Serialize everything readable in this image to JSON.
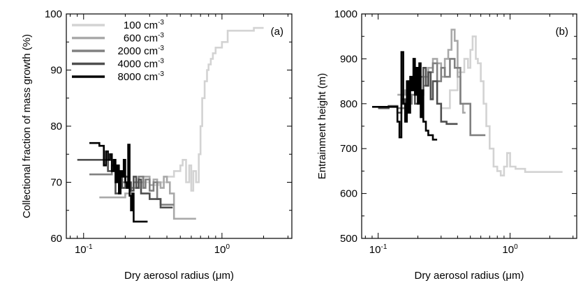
{
  "chart_data": [
    {
      "type": "line",
      "panel_label": "(a)",
      "xlabel": "Dry aerosol radius (μm)",
      "ylabel": "Collectional fraction of mass growth (%)",
      "xscale": "log",
      "xlim": [
        0.075,
        3.2
      ],
      "ylim": [
        60,
        100
      ],
      "yticks": [
        60,
        70,
        80,
        90,
        100
      ],
      "xtick_labels": [
        {
          "base": "10",
          "exp": "-1"
        },
        {
          "base": "10",
          "exp": "0"
        }
      ],
      "grid": false,
      "legend_placement": "top-left",
      "series": [
        {
          "name": "100 cm",
          "name_sup": "-3",
          "color": "#d3d3d3",
          "x": [
            0.24,
            0.26,
            0.3,
            0.35,
            0.4,
            0.45,
            0.5,
            0.52,
            0.55,
            0.58,
            0.6,
            0.62,
            0.65,
            0.68,
            0.7,
            0.72,
            0.75,
            0.78,
            0.8,
            0.83,
            0.86,
            0.9,
            0.95,
            1.0,
            1.05,
            1.1,
            1.2,
            1.4,
            1.7,
            2.0
          ],
          "y": [
            69,
            70,
            69.5,
            70,
            71,
            72,
            73,
            74,
            70,
            73,
            68.5,
            72,
            70,
            75,
            80,
            85,
            88,
            90,
            91,
            92,
            93,
            94,
            94,
            95,
            95,
            97,
            97,
            97,
            97.5,
            97.5
          ]
        },
        {
          "name": "600 cm",
          "name_sup": "-3",
          "color": "#a9a9a9",
          "x": [
            0.13,
            0.15,
            0.18,
            0.2,
            0.22,
            0.25,
            0.27,
            0.3,
            0.32,
            0.34,
            0.36,
            0.38,
            0.4,
            0.42,
            0.45,
            0.55,
            0.65
          ],
          "y": [
            67.3,
            67.3,
            67.3,
            68,
            69,
            70,
            71,
            69.5,
            70.5,
            70,
            69,
            71,
            70,
            68,
            63.5,
            63.5,
            63.5
          ]
        },
        {
          "name": "2000 cm",
          "name_sup": "-3",
          "color": "#808080",
          "x": [
            0.11,
            0.14,
            0.16,
            0.18,
            0.2,
            0.21,
            0.23,
            0.25,
            0.27,
            0.28,
            0.3,
            0.32,
            0.34,
            0.36,
            0.4,
            0.45
          ],
          "y": [
            71.4,
            71.4,
            72,
            70,
            71,
            69,
            70,
            71,
            69,
            70.5,
            68.5,
            70,
            67,
            66,
            66,
            66
          ]
        },
        {
          "name": "4000 cm",
          "name_sup": "-3",
          "color": "#4f4f4f",
          "x": [
            0.09,
            0.13,
            0.15,
            0.16,
            0.17,
            0.18,
            0.19,
            0.2,
            0.21,
            0.22,
            0.23,
            0.24,
            0.25,
            0.26,
            0.28,
            0.3,
            0.33,
            0.36,
            0.4,
            0.44
          ],
          "y": [
            74,
            74,
            72,
            73,
            68,
            71,
            69,
            71,
            70,
            68.5,
            71,
            69,
            70.5,
            68,
            68,
            67,
            67,
            65.5,
            65.5,
            65.5
          ]
        },
        {
          "name": "8000 cm",
          "name_sup": "-3",
          "color": "#000000",
          "x": [
            0.11,
            0.12,
            0.13,
            0.14,
            0.145,
            0.15,
            0.155,
            0.16,
            0.165,
            0.17,
            0.175,
            0.18,
            0.185,
            0.19,
            0.195,
            0.2,
            0.205,
            0.21,
            0.215,
            0.22,
            0.225,
            0.23,
            0.24,
            0.26,
            0.29
          ],
          "y": [
            77,
            77,
            76.5,
            73,
            75.5,
            74,
            75,
            72,
            74,
            70,
            73,
            68,
            72,
            71,
            74,
            70,
            69,
            76.7,
            67.6,
            65,
            68,
            63,
            63,
            63,
            63
          ]
        }
      ]
    },
    {
      "type": "line",
      "panel_label": "(b)",
      "xlabel": "Dry aerosol radius (μm)",
      "ylabel": "Entrainment height (m)",
      "xscale": "log",
      "xlim": [
        0.075,
        3.2
      ],
      "ylim": [
        500,
        1000
      ],
      "yticks": [
        500,
        600,
        700,
        800,
        900,
        1000
      ],
      "xtick_labels": [
        {
          "base": "10",
          "exp": "-1"
        },
        {
          "base": "10",
          "exp": "0"
        }
      ],
      "grid": false,
      "series": [
        {
          "name": "100 cm",
          "name_sup": "-3",
          "color": "#d3d3d3",
          "x": [
            0.3,
            0.35,
            0.4,
            0.45,
            0.48,
            0.5,
            0.52,
            0.55,
            0.57,
            0.6,
            0.63,
            0.66,
            0.7,
            0.75,
            0.8,
            0.85,
            0.9,
            0.95,
            1.0,
            1.1,
            1.3,
            1.8,
            2.5
          ],
          "y": [
            790,
            830,
            870,
            900,
            880,
            920,
            950,
            900,
            890,
            850,
            800,
            750,
            700,
            660,
            650,
            640,
            660,
            690,
            660,
            655,
            648,
            648,
            648
          ]
        },
        {
          "name": "600 cm",
          "name_sup": "-3",
          "color": "#a9a9a9",
          "x": [
            0.14,
            0.16,
            0.18,
            0.2,
            0.22,
            0.24,
            0.26,
            0.28,
            0.3,
            0.32,
            0.34,
            0.36,
            0.38,
            0.4,
            0.42,
            0.44,
            0.46
          ],
          "y": [
            820,
            830,
            840,
            820,
            860,
            880,
            900,
            890,
            860,
            900,
            920,
            965,
            940,
            860,
            800,
            780,
            780
          ]
        },
        {
          "name": "2000 cm",
          "name_sup": "-3",
          "color": "#808080",
          "x": [
            0.14,
            0.16,
            0.18,
            0.2,
            0.22,
            0.24,
            0.26,
            0.28,
            0.3,
            0.32,
            0.35,
            0.38,
            0.42,
            0.5,
            0.6,
            0.65
          ],
          "y": [
            790,
            800,
            820,
            860,
            840,
            870,
            890,
            850,
            880,
            860,
            900,
            880,
            800,
            730,
            730,
            730
          ]
        },
        {
          "name": "4000 cm",
          "name_sup": "-3",
          "color": "#4f4f4f",
          "x": [
            0.1,
            0.12,
            0.14,
            0.15,
            0.16,
            0.17,
            0.18,
            0.19,
            0.2,
            0.21,
            0.22,
            0.23,
            0.24,
            0.25,
            0.26,
            0.28,
            0.3,
            0.33,
            0.37,
            0.4
          ],
          "y": [
            790,
            795,
            780,
            810,
            790,
            850,
            830,
            800,
            860,
            820,
            880,
            840,
            870,
            810,
            850,
            800,
            760,
            755,
            755,
            755
          ]
        },
        {
          "name": "8000 cm",
          "name_sup": "-3",
          "color": "#000000",
          "x": [
            0.09,
            0.12,
            0.13,
            0.14,
            0.145,
            0.15,
            0.155,
            0.16,
            0.165,
            0.17,
            0.175,
            0.18,
            0.185,
            0.19,
            0.195,
            0.2,
            0.205,
            0.21,
            0.215,
            0.22,
            0.23,
            0.24,
            0.26,
            0.28
          ],
          "y": [
            793,
            793,
            793,
            760,
            725,
            915,
            800,
            760,
            850,
            780,
            860,
            830,
            900,
            820,
            880,
            800,
            890,
            770,
            830,
            760,
            740,
            730,
            720,
            720
          ]
        }
      ]
    }
  ]
}
